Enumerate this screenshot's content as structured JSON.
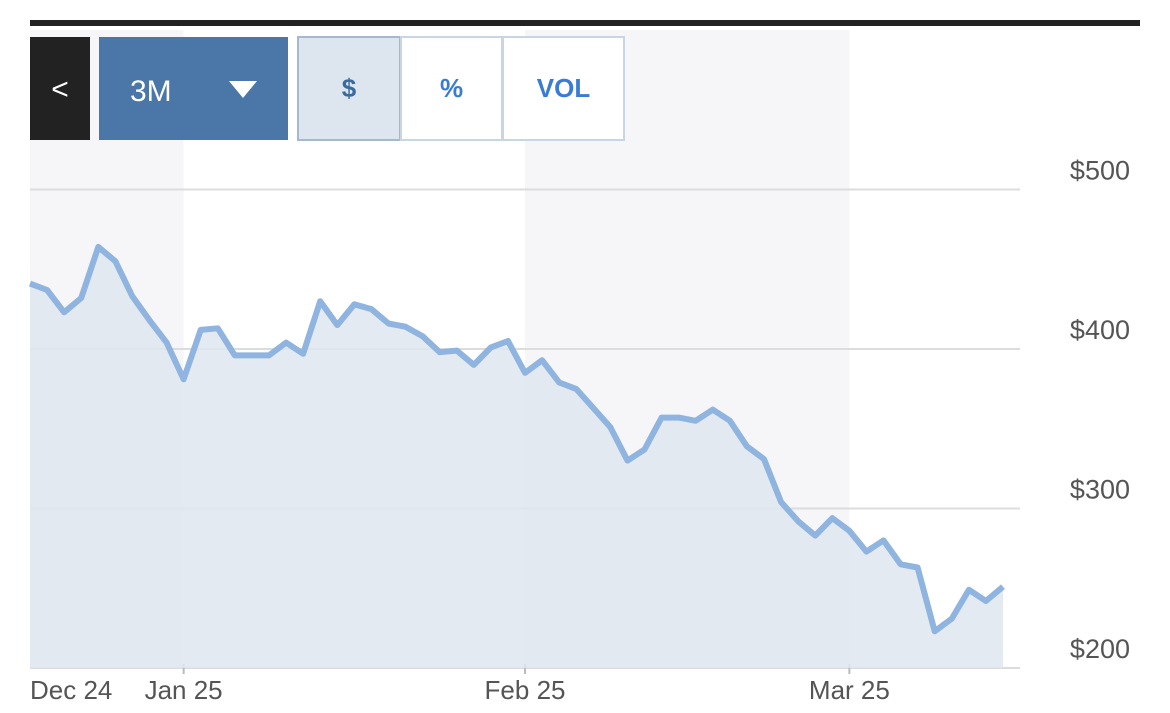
{
  "toolbar": {
    "back": "<",
    "range": "3M",
    "modes": [
      "$",
      "%",
      "VOL"
    ],
    "selected_mode": "$"
  },
  "chart_data": {
    "type": "area",
    "categories": [
      "Dec 24",
      null,
      null,
      null,
      null,
      null,
      null,
      null,
      null,
      "Jan 25",
      null,
      null,
      null,
      null,
      null,
      null,
      null,
      null,
      null,
      null,
      null,
      null,
      null,
      null,
      null,
      null,
      null,
      null,
      null,
      "Feb 25",
      null,
      null,
      null,
      null,
      null,
      null,
      null,
      null,
      null,
      null,
      null,
      null,
      null,
      null,
      null,
      null,
      null,
      null,
      "Mar 25",
      null,
      null,
      null,
      null,
      null,
      null,
      null,
      null,
      null
    ],
    "series": [
      {
        "color": "#8fb4e0",
        "fill": "#dfe6ef",
        "values": [
          441,
          437,
          423,
          432,
          464,
          455,
          433,
          418,
          404,
          381,
          412,
          413,
          396,
          396,
          396,
          404,
          397,
          430,
          415,
          428,
          425,
          416,
          414,
          408,
          398,
          399,
          390,
          401,
          405,
          385,
          393,
          379,
          375,
          363,
          351,
          330,
          337,
          357,
          357,
          355,
          362,
          355,
          339,
          331,
          304,
          292,
          283,
          294,
          286,
          273,
          280,
          265,
          263,
          223,
          231,
          249,
          242,
          251
        ]
      }
    ],
    "ylim": [
      200,
      600
    ],
    "yticks": [
      {
        "value": 200,
        "label": "$200"
      },
      {
        "value": 300,
        "label": "$300"
      },
      {
        "value": 400,
        "label": "$400"
      },
      {
        "value": 500,
        "label": "$500"
      }
    ],
    "grid": true
  }
}
